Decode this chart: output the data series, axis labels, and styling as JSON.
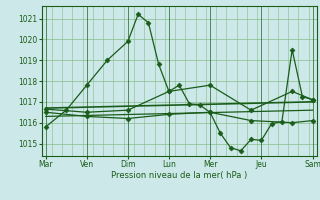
{
  "background_color": "#cce8e8",
  "grid_color": "#88bb88",
  "line_color": "#1a5c1a",
  "x_label_names": [
    "Mar",
    "Ven",
    "Dim",
    "Lun",
    "Mer",
    "Jeu",
    "Sam"
  ],
  "ylim": [
    1014.4,
    1021.6
  ],
  "yticks": [
    1015,
    1016,
    1017,
    1018,
    1019,
    1020,
    1021
  ],
  "xlabel": "Pression niveau de la mer( hPa )",
  "series": [
    {
      "x": [
        0,
        1,
        2,
        3,
        4,
        4.5,
        5,
        5.5,
        6,
        6.5,
        7,
        7.5,
        8,
        8.5,
        9,
        9.5,
        10,
        10.5,
        11,
        11.5,
        12,
        12.5,
        13
      ],
      "y": [
        1015.8,
        1016.6,
        1017.8,
        1019.0,
        1019.9,
        1021.2,
        1020.8,
        1018.8,
        1017.5,
        1017.8,
        1016.9,
        1016.85,
        1016.5,
        1015.5,
        1014.8,
        1014.65,
        1015.2,
        1015.15,
        1015.95,
        1016.05,
        1019.5,
        1017.25,
        1017.1
      ],
      "marker": "D",
      "markersize": 2.5,
      "linewidth": 0.9
    },
    {
      "x": [
        0,
        2,
        4,
        6,
        8,
        10,
        12,
        13
      ],
      "y": [
        1016.5,
        1016.3,
        1016.2,
        1016.4,
        1016.5,
        1016.1,
        1016.0,
        1016.1
      ],
      "marker": "D",
      "markersize": 2.5,
      "linewidth": 0.9
    },
    {
      "x": [
        0,
        2,
        4,
        6,
        8,
        10,
        12,
        13
      ],
      "y": [
        1016.65,
        1016.5,
        1016.6,
        1017.5,
        1017.8,
        1016.6,
        1017.5,
        1017.1
      ],
      "marker": "D",
      "markersize": 2.5,
      "linewidth": 0.9
    },
    {
      "x": [
        0,
        13
      ],
      "y": [
        1016.7,
        1017.0
      ],
      "marker": null,
      "linewidth": 1.2
    },
    {
      "x": [
        0,
        13
      ],
      "y": [
        1016.3,
        1016.6
      ],
      "marker": null,
      "linewidth": 0.9
    }
  ],
  "day_x": [
    0,
    2,
    4,
    6,
    8,
    10.5,
    13
  ],
  "figsize": [
    3.2,
    2.0
  ],
  "dpi": 100
}
